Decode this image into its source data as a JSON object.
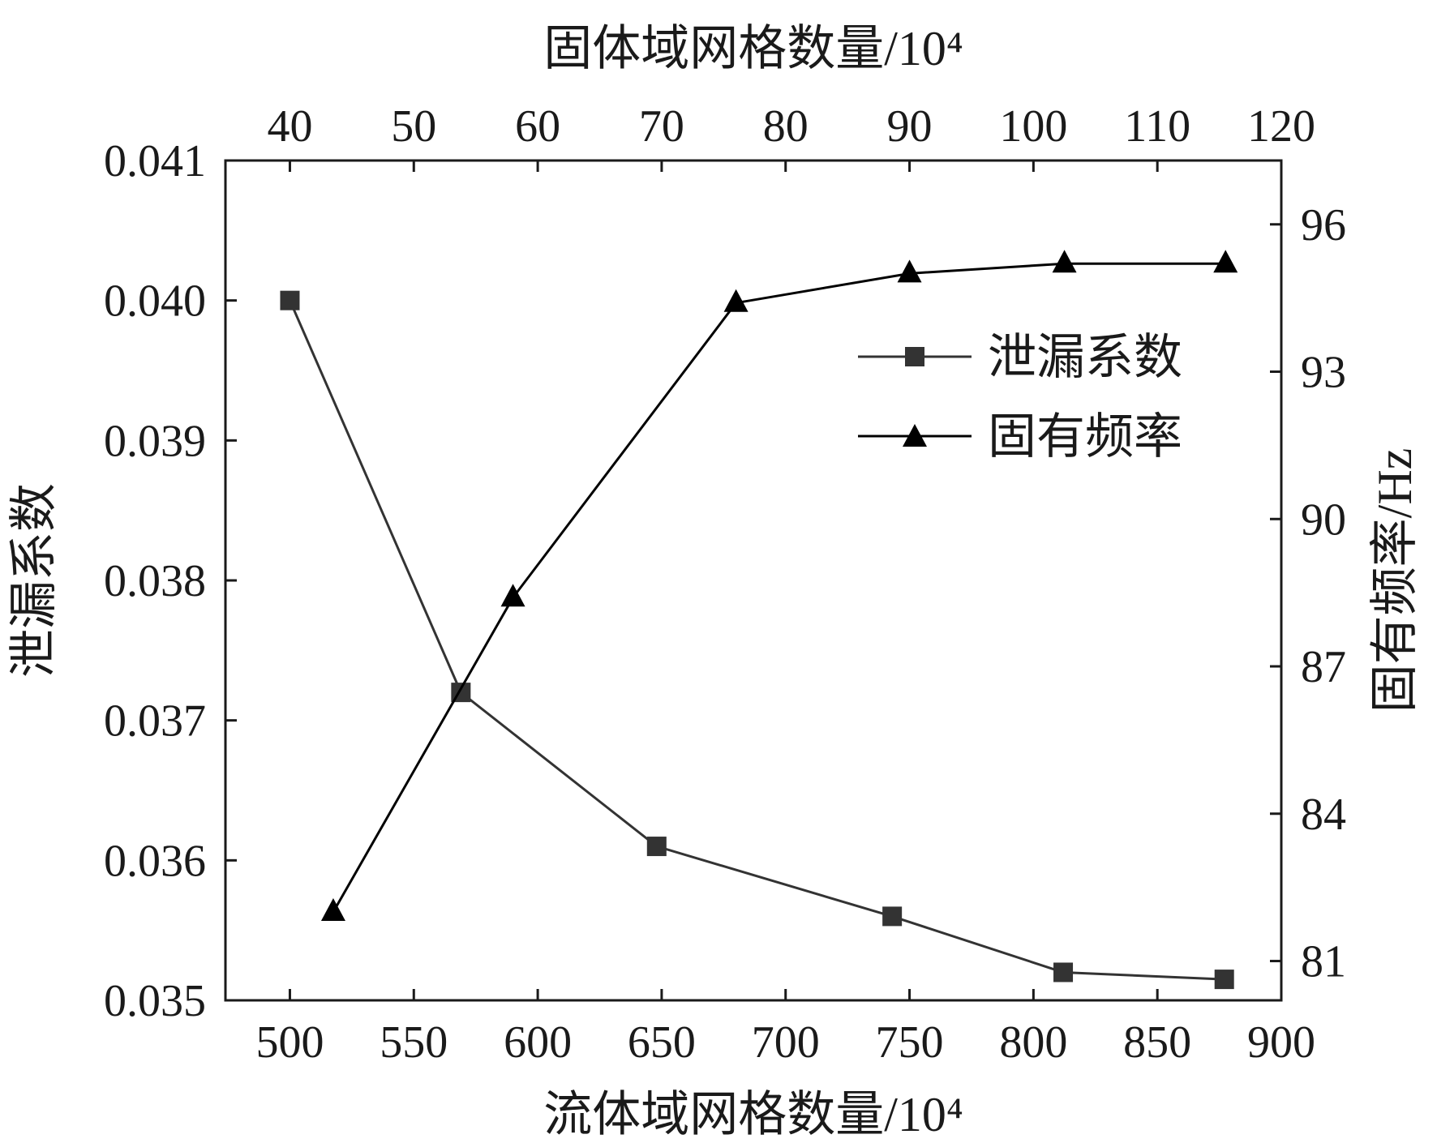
{
  "chart_data": {
    "type": "line",
    "title": "",
    "xlabel": "流体域网格数量/10⁴",
    "x2label": "固体域网格数量/10⁴",
    "ylabel": "泄漏系数",
    "y2label": "固有频率/Hz",
    "xlim": [
      474,
      900
    ],
    "x2lim": [
      34.8,
      120
    ],
    "ylim": [
      0.035,
      0.041
    ],
    "y2lim": [
      80.2,
      97.3
    ],
    "x_ticks": [
      "500",
      "550",
      "600",
      "650",
      "700",
      "750",
      "800",
      "850",
      "900"
    ],
    "x2_ticks": [
      "40",
      "50",
      "60",
      "70",
      "80",
      "90",
      "100",
      "110",
      "120"
    ],
    "y_ticks": [
      "0.035",
      "0.036",
      "0.037",
      "0.038",
      "0.039",
      "0.040",
      "0.041"
    ],
    "y2_ticks": [
      "81",
      "84",
      "87",
      "90",
      "93",
      "96"
    ],
    "grid": false,
    "legend_position": "upper-right",
    "series": [
      {
        "name": "泄漏系数",
        "axis": "bottom-left",
        "marker": "square",
        "color": "#333333",
        "x": [
          500,
          569,
          648,
          743,
          812,
          877
        ],
        "y": [
          0.04,
          0.0372,
          0.0361,
          0.0356,
          0.0352,
          0.03515
        ]
      },
      {
        "name": "固有频率",
        "axis": "top-right",
        "marker": "triangle",
        "color": "#000000",
        "x": [
          43.5,
          58,
          76,
          90,
          102.5,
          115.5
        ],
        "y": [
          82.0,
          88.4,
          94.4,
          95.0,
          95.2,
          95.2
        ]
      }
    ]
  }
}
